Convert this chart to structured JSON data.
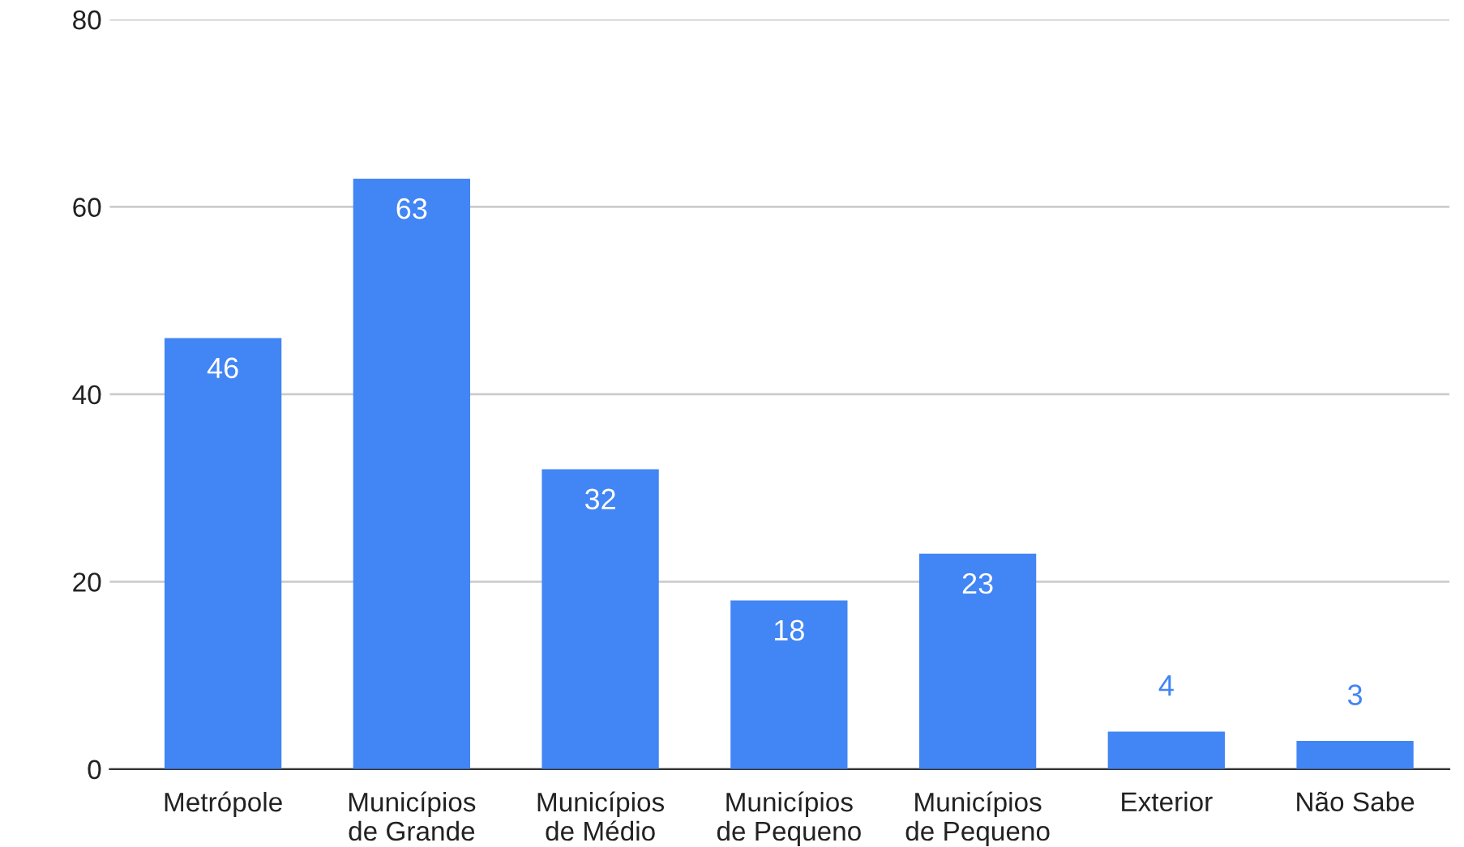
{
  "chart_data": {
    "type": "bar",
    "categories": [
      "Metrópole",
      "Municípios\nde Grande",
      "Municípios\nde Médio",
      "Municípios\nde Pequeno",
      "Municípios\nde Pequeno",
      "Exterior",
      "Não Sabe"
    ],
    "values": [
      46,
      63,
      32,
      18,
      23,
      4,
      3
    ],
    "color": "#4285f4",
    "data_labels": true,
    "ylim": [
      0,
      80
    ],
    "yticks": [
      0,
      20,
      40,
      60,
      80
    ],
    "grid": "y"
  }
}
